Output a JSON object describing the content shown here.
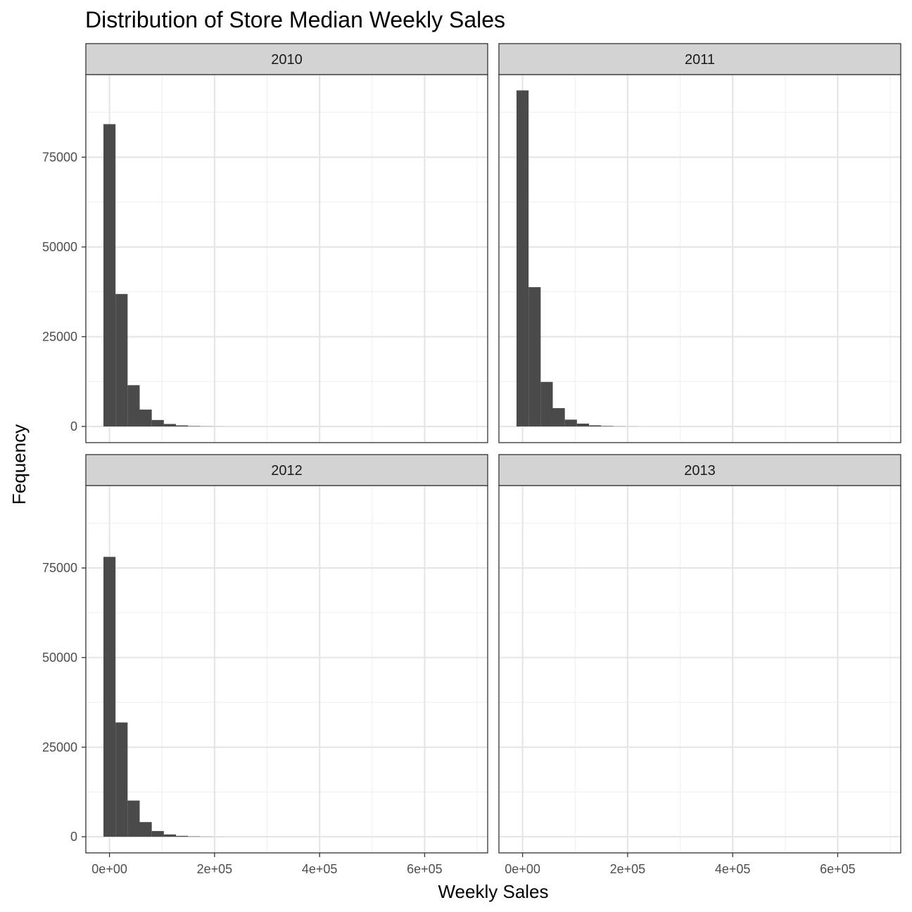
{
  "chart_data": {
    "type": "histogram-facets",
    "title": "Distribution of Store Median Weekly Sales",
    "xlabel": "Weekly Sales",
    "ylabel": "Fequency",
    "xlim": [
      -45000,
      720000
    ],
    "ylim": [
      -4500,
      98000
    ],
    "x_ticks": [
      0,
      200000,
      400000,
      600000
    ],
    "x_tick_labels": [
      "0e+00",
      "2e+05",
      "4e+05",
      "6e+05"
    ],
    "x_minor_ticks": [
      100000,
      300000,
      500000,
      700000
    ],
    "y_ticks": [
      0,
      25000,
      50000,
      75000
    ],
    "y_tick_labels": [
      "0",
      "25000",
      "50000",
      "75000"
    ],
    "y_minor_ticks": [
      12500,
      37500,
      62500,
      87500
    ],
    "bar_color": "#4a4a4a",
    "strip_color": "#d3d3d3",
    "grid": true,
    "bin_width": 23000,
    "bin_start": -11500,
    "facets": [
      {
        "label": "2010",
        "values": [
          84200,
          36900,
          11500,
          4700,
          1800,
          700,
          300,
          120,
          50,
          20
        ]
      },
      {
        "label": "2011",
        "values": [
          93600,
          38800,
          12400,
          5100,
          1900,
          800,
          320,
          130,
          50,
          20
        ]
      },
      {
        "label": "2012",
        "values": [
          78100,
          31900,
          10100,
          4100,
          1600,
          650,
          250,
          100,
          40,
          15
        ]
      },
      {
        "label": "2013",
        "values": []
      }
    ]
  }
}
